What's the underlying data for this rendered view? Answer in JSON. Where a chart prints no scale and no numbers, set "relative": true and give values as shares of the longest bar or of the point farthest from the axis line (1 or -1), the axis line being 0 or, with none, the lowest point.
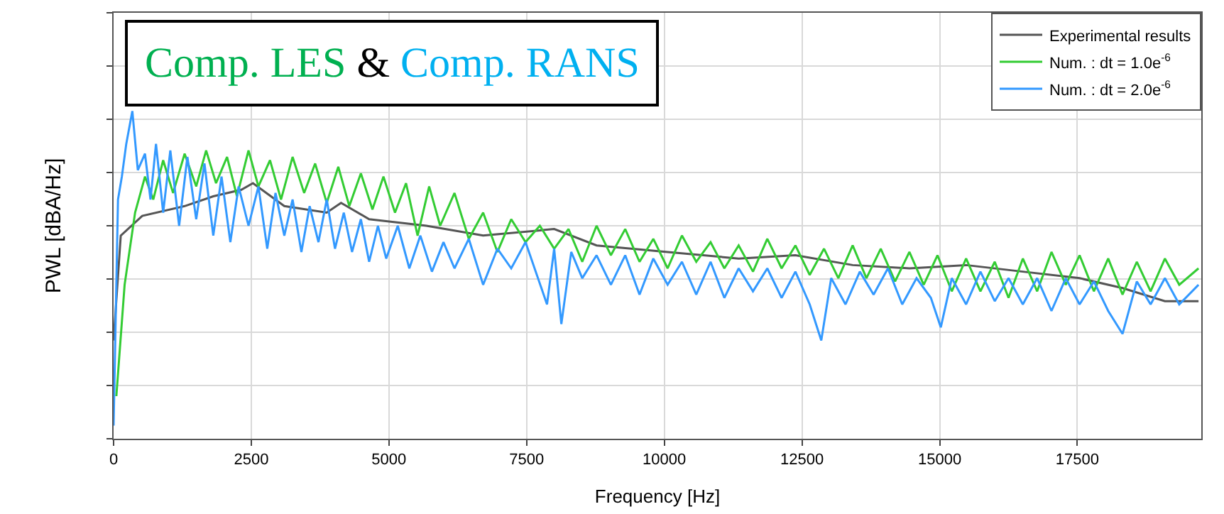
{
  "chart_data": {
    "type": "line",
    "relative": true,
    "xlabel": "Frequency [Hz]",
    "ylabel": "PWL [dBA/Hz]",
    "annotations": [
      "Comp. LES",
      "&",
      "Comp. RANS"
    ],
    "xlim": [
      0,
      19750
    ],
    "xticks": [
      0,
      2500,
      5000,
      7500,
      10000,
      12500,
      15000,
      17500
    ],
    "grid": true,
    "legend": "top right",
    "tick_labels": "x",
    "series": [
      {
        "name": "Experimental results",
        "color": "#555555",
        "x": [
          0,
          130,
          520,
          1290,
          1810,
          2320,
          2530,
          3100,
          3870,
          4130,
          4640,
          5680,
          6710,
          8000,
          8770,
          10060,
          11350,
          12380,
          13420,
          14450,
          15480,
          16510,
          17540,
          18320,
          19090,
          19700
        ],
        "values": [
          0.3,
          0.62,
          0.68,
          0.71,
          0.74,
          0.76,
          0.78,
          0.71,
          0.69,
          0.72,
          0.67,
          0.65,
          0.62,
          0.64,
          0.59,
          0.57,
          0.55,
          0.56,
          0.53,
          0.52,
          0.53,
          0.51,
          0.49,
          0.46,
          0.42,
          0.42
        ]
      },
      {
        "name": "Num. : dt = 1.0e$^{-6}$",
        "color": "#33cc33",
        "x": [
          50,
          200,
          390,
          570,
          720,
          900,
          1080,
          1290,
          1500,
          1680,
          1860,
          2060,
          2240,
          2450,
          2630,
          2840,
          3040,
          3250,
          3460,
          3660,
          3870,
          4080,
          4280,
          4490,
          4700,
          4900,
          5110,
          5310,
          5520,
          5730,
          5930,
          6190,
          6450,
          6710,
          6970,
          7220,
          7480,
          7740,
          8000,
          8260,
          8510,
          8770,
          9030,
          9290,
          9550,
          9800,
          10060,
          10320,
          10580,
          10840,
          11090,
          11350,
          11610,
          11870,
          12130,
          12380,
          12640,
          12900,
          13160,
          13420,
          13670,
          13930,
          14190,
          14450,
          14710,
          14960,
          15220,
          15480,
          15740,
          16000,
          16250,
          16510,
          16770,
          17030,
          17290,
          17540,
          17800,
          18060,
          18320,
          18580,
          18830,
          19090,
          19350,
          19700
        ],
        "values": [
          0.13,
          0.47,
          0.69,
          0.8,
          0.73,
          0.85,
          0.75,
          0.87,
          0.77,
          0.88,
          0.78,
          0.86,
          0.74,
          0.88,
          0.77,
          0.85,
          0.73,
          0.86,
          0.75,
          0.84,
          0.72,
          0.83,
          0.71,
          0.81,
          0.7,
          0.8,
          0.69,
          0.78,
          0.62,
          0.77,
          0.65,
          0.75,
          0.61,
          0.69,
          0.57,
          0.67,
          0.6,
          0.65,
          0.58,
          0.64,
          0.54,
          0.65,
          0.56,
          0.64,
          0.54,
          0.61,
          0.52,
          0.62,
          0.54,
          0.6,
          0.52,
          0.59,
          0.51,
          0.61,
          0.52,
          0.59,
          0.5,
          0.58,
          0.49,
          0.59,
          0.49,
          0.58,
          0.48,
          0.57,
          0.47,
          0.56,
          0.45,
          0.55,
          0.45,
          0.54,
          0.43,
          0.55,
          0.45,
          0.57,
          0.47,
          0.56,
          0.45,
          0.55,
          0.44,
          0.54,
          0.45,
          0.55,
          0.47,
          0.52
        ]
      },
      {
        "name": "Num. : dt = 2.0e$^{-6}$",
        "color": "#3399ff",
        "x": [
          0,
          80,
          150,
          230,
          340,
          440,
          570,
          670,
          770,
          900,
          1030,
          1190,
          1340,
          1500,
          1650,
          1810,
          1960,
          2120,
          2270,
          2450,
          2630,
          2790,
          2940,
          3100,
          3250,
          3410,
          3560,
          3720,
          3870,
          4020,
          4180,
          4330,
          4490,
          4640,
          4800,
          4950,
          5160,
          5370,
          5570,
          5780,
          5990,
          6190,
          6450,
          6710,
          6970,
          7220,
          7480,
          7870,
          8000,
          8130,
          8310,
          8510,
          8770,
          9030,
          9290,
          9550,
          9800,
          10060,
          10320,
          10580,
          10840,
          11090,
          11350,
          11610,
          11870,
          12130,
          12380,
          12640,
          12850,
          13030,
          13290,
          13550,
          13800,
          14060,
          14320,
          14580,
          14840,
          15020,
          15220,
          15480,
          15740,
          16000,
          16250,
          16510,
          16770,
          17030,
          17290,
          17540,
          17800,
          18060,
          18320,
          18580,
          18830,
          19090,
          19350,
          19700
        ],
        "values": [
          0.04,
          0.73,
          0.8,
          0.9,
          1.0,
          0.82,
          0.87,
          0.73,
          0.9,
          0.69,
          0.88,
          0.65,
          0.86,
          0.67,
          0.84,
          0.62,
          0.8,
          0.6,
          0.77,
          0.65,
          0.77,
          0.58,
          0.75,
          0.62,
          0.73,
          0.57,
          0.71,
          0.6,
          0.73,
          0.58,
          0.69,
          0.57,
          0.67,
          0.54,
          0.65,
          0.55,
          0.65,
          0.52,
          0.62,
          0.51,
          0.6,
          0.52,
          0.61,
          0.47,
          0.58,
          0.52,
          0.6,
          0.41,
          0.58,
          0.35,
          0.57,
          0.49,
          0.56,
          0.47,
          0.56,
          0.44,
          0.55,
          0.47,
          0.54,
          0.44,
          0.54,
          0.43,
          0.52,
          0.45,
          0.52,
          0.43,
          0.51,
          0.41,
          0.3,
          0.49,
          0.41,
          0.51,
          0.44,
          0.52,
          0.41,
          0.49,
          0.43,
          0.34,
          0.49,
          0.41,
          0.51,
          0.42,
          0.49,
          0.41,
          0.49,
          0.39,
          0.49,
          0.41,
          0.48,
          0.39,
          0.32,
          0.48,
          0.41,
          0.49,
          0.41,
          0.47
        ]
      }
    ]
  }
}
